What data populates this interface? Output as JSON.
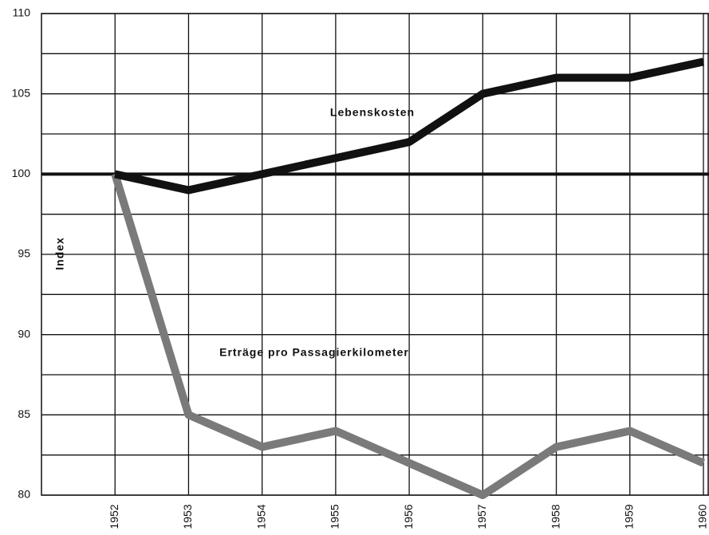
{
  "chart_data": {
    "type": "line",
    "y_label": "Index",
    "x": [
      1952,
      1953,
      1954,
      1955,
      1956,
      1957,
      1958,
      1959,
      1960
    ],
    "series": [
      {
        "name": "Lebenskosten",
        "color": "#111111",
        "values": [
          100,
          99,
          100,
          101,
          102,
          105,
          106,
          106,
          107
        ]
      },
      {
        "name": "Erträge pro Passagierkilometer",
        "color": "#7a7a7a",
        "values": [
          100,
          85,
          83,
          84,
          82,
          80,
          83,
          84,
          82
        ]
      }
    ],
    "xlim": [
      1951,
      1960
    ],
    "xticks": [
      1952,
      1953,
      1954,
      1955,
      1956,
      1957,
      1958,
      1959,
      1960
    ],
    "ylim": [
      80,
      110
    ],
    "yticks": [
      80,
      85,
      90,
      95,
      100,
      105,
      110
    ],
    "minor_yticks": [
      82.5,
      87.5,
      92.5,
      97.5,
      102.5,
      107.5
    ],
    "reference_line": 100,
    "grid": true
  }
}
